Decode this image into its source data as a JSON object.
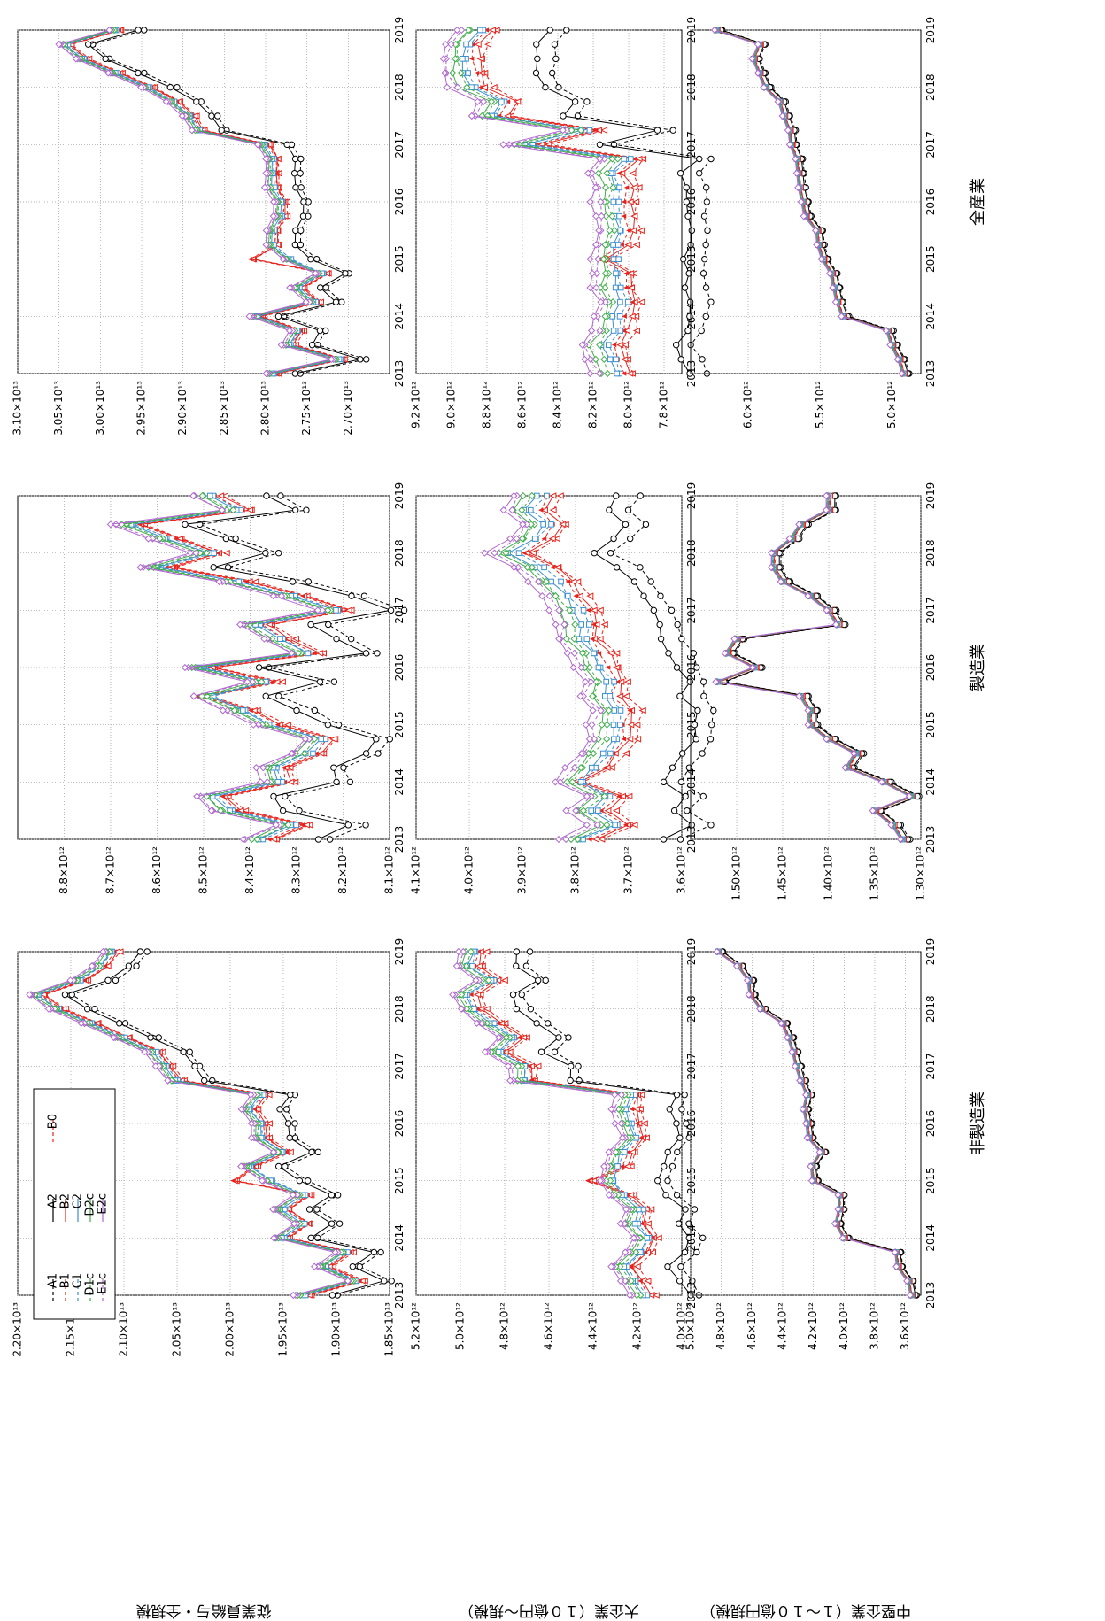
{
  "legend": [
    "A1",
    "A2",
    "B1",
    "B2",
    "B0",
    "C1",
    "C2",
    "D1c",
    "D2c",
    "E1c",
    "E2c"
  ],
  "series_styles": {
    "A1": {
      "color": "#000000",
      "marker": "circle",
      "dash": "4,3"
    },
    "A2": {
      "color": "#000000",
      "marker": "circle",
      "dash": ""
    },
    "B1": {
      "color": "#e8231b",
      "marker": "triangle",
      "dash": "4,3"
    },
    "B2": {
      "color": "#e8231b",
      "marker": "triangle",
      "dash": ""
    },
    "B0": {
      "color": "#e8231b",
      "marker": "smalltri",
      "dash": "4,3"
    },
    "C1": {
      "color": "#3b8fd0",
      "marker": "square",
      "dash": "4,3"
    },
    "C2": {
      "color": "#3b8fd0",
      "marker": "square",
      "dash": ""
    },
    "D1c": {
      "color": "#3fae49",
      "marker": "diamond",
      "dash": "4,3"
    },
    "D2c": {
      "color": "#3fae49",
      "marker": "diamond",
      "dash": ""
    },
    "E1c": {
      "color": "#b067d0",
      "marker": "diamond",
      "dash": "4,3"
    },
    "E2c": {
      "color": "#b067d0",
      "marker": "diamond",
      "dash": ""
    }
  },
  "column_titles": [
    "全産業",
    "製造業",
    "非製造業"
  ],
  "row_labels": [
    "従業員給与・全規模",
    "大企業（１０億円～規模）",
    "中堅企業（１～１０億円規模）"
  ],
  "chart_data": [
    {
      "type": "line",
      "title": "全産業",
      "ylabel": "従業員給与・全規模",
      "ylim": [
        26500000000000.0,
        31000000000000.0
      ],
      "yticks": [
        "3.10×10¹³",
        "3.05×10¹³",
        "3.00×10¹³",
        "2.95×10¹³",
        "2.90×10¹³",
        "2.85×10¹³",
        "2.80×10¹³",
        "2.75×10¹³",
        "2.70×10¹³"
      ],
      "ytick_values": [
        31000000000000.0,
        30500000000000.0,
        30000000000000.0,
        29500000000000.0,
        29000000000000.0,
        28500000000000.0,
        28000000000000.0,
        27500000000000.0,
        27000000000000.0
      ],
      "xticks": [
        "2013",
        "2014",
        "2015",
        "2016",
        "2017",
        "2018",
        "2019"
      ],
      "xlim": [
        2013,
        2019
      ],
      "base": [
        27900000000000.0,
        27100000000000.0,
        27700000000000.0,
        27600000000000.0,
        28100000000000.0,
        27400000000000.0,
        27600000000000.0,
        27300000000000.0,
        27700000000000.0,
        27900000000000.0,
        27900000000000.0,
        27800000000000.0,
        27800000000000.0,
        27900000000000.0,
        27900000000000.0,
        27900000000000.0,
        28000000000000.0,
        28800000000000.0,
        28900000000000.0,
        29100000000000.0,
        29400000000000.0,
        29800000000000.0,
        30200000000000.0,
        30400000000000.0,
        29800000000000.0
      ],
      "spread": 40000000000.0,
      "b_bump": [
        8,
        500000000000.0
      ]
    },
    {
      "type": "line",
      "title": "製造業",
      "ylim": [
        8100000000000.0,
        8900000000000.0
      ],
      "yticks": [
        "8.8×10¹²",
        "8.7×10¹²",
        "8.6×10¹²",
        "8.5×10¹²",
        "8.4×10¹²",
        "8.3×10¹²",
        "8.2×10¹²",
        "8.1×10¹²"
      ],
      "ytick_values": [
        8800000000000.0,
        8700000000000.0,
        8600000000000.0,
        8500000000000.0,
        8400000000000.0,
        8300000000000.0,
        8200000000000.0,
        8100000000000.0
      ],
      "xticks": [
        "2013",
        "2014",
        "2015",
        "2016",
        "2017",
        "2018",
        "2019"
      ],
      "xlim": [
        2013,
        2019
      ],
      "base": [
        8370000000000.0,
        8300000000000.0,
        8440000000000.0,
        8470000000000.0,
        8330000000000.0,
        8340000000000.0,
        8270000000000.0,
        8240000000000.0,
        8350000000000.0,
        8410000000000.0,
        8480000000000.0,
        8360000000000.0,
        8500000000000.0,
        8270000000000.0,
        8330000000000.0,
        8380000000000.0,
        8210000000000.0,
        8300000000000.0,
        8420000000000.0,
        8590000000000.0,
        8480000000000.0,
        8570000000000.0,
        8650000000000.0,
        8420000000000.0,
        8480000000000.0
      ],
      "spread": 18000000000.0,
      "b_bump": [
        10,
        40000000000.0
      ]
    },
    {
      "type": "line",
      "title": "非製造業",
      "ylim": [
        18500000000000.0,
        22000000000000.0
      ],
      "yticks": [
        "2.20×10¹³",
        "2.15×10¹³",
        "2.10×10¹³",
        "2.05×10¹³",
        "2.00×10¹³",
        "1.95×10¹³",
        "1.90×10¹³",
        "1.85×10¹³"
      ],
      "ytick_values": [
        22000000000000.0,
        21500000000000.0,
        21000000000000.0,
        20500000000000.0,
        20000000000000.0,
        19500000000000.0,
        19000000000000.0,
        18500000000000.0
      ],
      "xticks": [
        "2013",
        "2014",
        "2015",
        "2016",
        "2017",
        "2018",
        "2019"
      ],
      "xlim": [
        2013,
        2019
      ],
      "base": [
        19300000000000.0,
        18800000000000.0,
        19100000000000.0,
        18900000000000.0,
        19500000000000.0,
        19300000000000.0,
        19500000000000.0,
        19300000000000.0,
        19600000000000.0,
        19800000000000.0,
        19500000000000.0,
        19700000000000.0,
        19700000000000.0,
        19800000000000.0,
        19700000000000.0,
        20500000000000.0,
        20600000000000.0,
        20700000000000.0,
        21000000000000.0,
        21300000000000.0,
        21600000000000.0,
        21800000000000.0,
        21400000000000.0,
        21200000000000.0,
        21100000000000.0
      ],
      "spread": 40000000000.0,
      "b_bump": [
        8,
        400000000000.0
      ]
    },
    {
      "type": "line",
      "ylabel": "大企業（１０億円～規模）",
      "ylim": [
        7700000000000.0,
        9200000000000.0
      ],
      "yticks": [
        "9.2×10¹²",
        "9.0×10¹²",
        "8.8×10¹²",
        "8.6×10¹²",
        "8.4×10¹²",
        "8.2×10¹²",
        "8.0×10¹²",
        "7.8×10¹²"
      ],
      "ytick_values": [
        9200000000000.0,
        9000000000000.0,
        8800000000000.0,
        8600000000000.0,
        8400000000000.0,
        8200000000000.0,
        8000000000000.0,
        7800000000000.0
      ],
      "xticks": [
        "2013",
        "2014",
        "2015",
        "2016",
        "2017",
        "2018",
        "2019"
      ],
      "xlim": [
        2013,
        2019
      ],
      "base": [
        8050000000000.0,
        8080000000000.0,
        8120000000000.0,
        8060000000000.0,
        8050000000000.0,
        8020000000000.0,
        8060000000000.0,
        8050000000000.0,
        8060000000000.0,
        8050000000000.0,
        8030000000000.0,
        8040000000000.0,
        8050000000000.0,
        8040000000000.0,
        8080000000000.0,
        8000000000000.0,
        8550000000000.0,
        8220000000000.0,
        8750000000000.0,
        8700000000000.0,
        8860000000000.0,
        8900000000000.0,
        8900000000000.0,
        8900000000000.0,
        8820000000000.0
      ],
      "spread": 60000000000.0,
      "b_bump": [
        8,
        120000000000.0
      ]
    },
    {
      "type": "line",
      "ylim": [
        3600000000000.0,
        4100000000000.0
      ],
      "yticks": [
        "4.1×10¹²",
        "4.0×10¹²",
        "3.9×10¹²",
        "3.8×10¹²",
        "3.7×10¹²",
        "3.6×10¹²"
      ],
      "ytick_values": [
        4100000000000.0,
        4000000000000.0,
        3900000000000.0,
        3800000000000.0,
        3700000000000.0,
        3600000000000.0
      ],
      "xticks": [
        "2013",
        "2014",
        "2015",
        "2016",
        "2017",
        "2018",
        "2019"
      ],
      "xlim": [
        2013,
        2019
      ],
      "base": [
        3780000000000.0,
        3720000000000.0,
        3760000000000.0,
        3730000000000.0,
        3780000000000.0,
        3760000000000.0,
        3740000000000.0,
        3720000000000.0,
        3720000000000.0,
        3710000000000.0,
        3740000000000.0,
        3730000000000.0,
        3750000000000.0,
        3760000000000.0,
        3780000000000.0,
        3780000000000.0,
        3790000000000.0,
        3810000000000.0,
        3830000000000.0,
        3860000000000.0,
        3910000000000.0,
        3870000000000.0,
        3850000000000.0,
        3880000000000.0,
        3860000000000.0
      ],
      "spread": 22000000000.0,
      "b_bump": [
        4,
        40000000000.0
      ]
    },
    {
      "type": "line",
      "ylim": [
        4000000000000.0,
        5200000000000.0
      ],
      "yticks": [
        "5.2×10¹²",
        "5.0×10¹²",
        "4.8×10¹²",
        "4.6×10¹²",
        "4.4×10¹²",
        "4.2×10¹²",
        "4.0×10¹²"
      ],
      "ytick_values": [
        5200000000000.0,
        5000000000000.0,
        4800000000000.0,
        4600000000000.0,
        4400000000000.0,
        4200000000000.0,
        4000000000000.0
      ],
      "xticks": [
        "2013",
        "2014",
        "2015",
        "2016",
        "2017",
        "2018",
        "2019"
      ],
      "xlim": [
        2013,
        2019
      ],
      "base": [
        4160000000000.0,
        4200000000000.0,
        4250000000000.0,
        4180000000000.0,
        4150000000000.0,
        4200000000000.0,
        4180000000000.0,
        4260000000000.0,
        4300000000000.0,
        4280000000000.0,
        4260000000000.0,
        4200000000000.0,
        4220000000000.0,
        4240000000000.0,
        4220000000000.0,
        4700000000000.0,
        4700000000000.0,
        4820000000000.0,
        4750000000000.0,
        4850000000000.0,
        4930000000000.0,
        4960000000000.0,
        4850000000000.0,
        4950000000000.0,
        4930000000000.0
      ],
      "spread": 30000000000.0,
      "b_bump": [
        8,
        140000000000.0
      ]
    },
    {
      "type": "line",
      "ylabel": "中堅企業（１～１０億円規模）",
      "ylim": [
        4800000000000.0,
        6400000000000.0
      ],
      "yticks": [
        "6.0×10¹²",
        "5.5×10¹²",
        "5.0×10¹²"
      ],
      "ytick_values": [
        6000000000000.0,
        5500000000000.0,
        5000000000000.0
      ],
      "xticks": [
        "2013",
        "2014",
        "2015",
        "2016",
        "2017",
        "2018",
        "2019"
      ],
      "xlim": [
        2013,
        2019
      ],
      "base": [
        4920000000000.0,
        4950000000000.0,
        5000000000000.0,
        5030000000000.0,
        5340000000000.0,
        5380000000000.0,
        5400000000000.0,
        5420000000000.0,
        5480000000000.0,
        5510000000000.0,
        5520000000000.0,
        5600000000000.0,
        5620000000000.0,
        5640000000000.0,
        5650000000000.0,
        5660000000000.0,
        5700000000000.0,
        5710000000000.0,
        5750000000000.0,
        5780000000000.0,
        5880000000000.0,
        5920000000000.0,
        5960000000000.0,
        5920000000000.0,
        6220000000000.0
      ],
      "spread": 5000000000.0,
      "b_bump": [
        8,
        0.0
      ]
    },
    {
      "type": "line",
      "ylim": [
        1300000000000.0,
        1550000000000.0
      ],
      "yticks": [
        "1.50×10¹²",
        "1.45×10¹²",
        "1.40×10¹²",
        "1.35×10¹²",
        "1.30×10¹²"
      ],
      "ytick_values": [
        1500000000000.0,
        1450000000000.0,
        1400000000000.0,
        1350000000000.0,
        1300000000000.0
      ],
      "xticks": [
        "2013",
        "2014",
        "2015",
        "2016",
        "2017",
        "2018",
        "2019"
      ],
      "xlim": [
        2013,
        2019
      ],
      "base": [
        1320000000000.0,
        1330000000000.0,
        1350000000000.0,
        1310000000000.0,
        1340000000000.0,
        1380000000000.0,
        1370000000000.0,
        1400000000000.0,
        1420000000000.0,
        1420000000000.0,
        1430000000000.0,
        1520000000000.0,
        1480000000000.0,
        1510000000000.0,
        1500000000000.0,
        1390000000000.0,
        1400000000000.0,
        1420000000000.0,
        1450000000000.0,
        1460000000000.0,
        1460000000000.0,
        1440000000000.0,
        1430000000000.0,
        1400000000000.0,
        1400000000000.0
      ],
      "spread": 1000000000.0,
      "b_bump": [
        8,
        0.0
      ]
    },
    {
      "type": "line",
      "ylim": [
        3500000000000.0,
        5000000000000.0
      ],
      "yticks": [
        "5.0×10¹²",
        "4.8×10¹²",
        "4.6×10¹²",
        "4.4×10¹²",
        "4.2×10¹²",
        "4.0×10¹²",
        "3.8×10¹²",
        "3.6×10¹²"
      ],
      "ytick_values": [
        5000000000000.0,
        4800000000000.0,
        4600000000000.0,
        4400000000000.0,
        4200000000000.0,
        4000000000000.0,
        3800000000000.0,
        3600000000000.0
      ],
      "xticks": [
        "2013",
        "2014",
        "2015",
        "2016",
        "2017",
        "2018",
        "2019"
      ],
      "xlim": [
        2013,
        2019
      ],
      "base": [
        3560000000000.0,
        3580000000000.0,
        3650000000000.0,
        3660000000000.0,
        4000000000000.0,
        4050000000000.0,
        4030000000000.0,
        4030000000000.0,
        4200000000000.0,
        4210000000000.0,
        4150000000000.0,
        4230000000000.0,
        4240000000000.0,
        4260000000000.0,
        4240000000000.0,
        4280000000000.0,
        4310000000000.0,
        4330000000000.0,
        4360000000000.0,
        4400000000000.0,
        4540000000000.0,
        4610000000000.0,
        4620000000000.0,
        4690000000000.0,
        4820000000000.0
      ],
      "spread": 4000000000.0,
      "b_bump": [
        8,
        0.0
      ]
    }
  ]
}
